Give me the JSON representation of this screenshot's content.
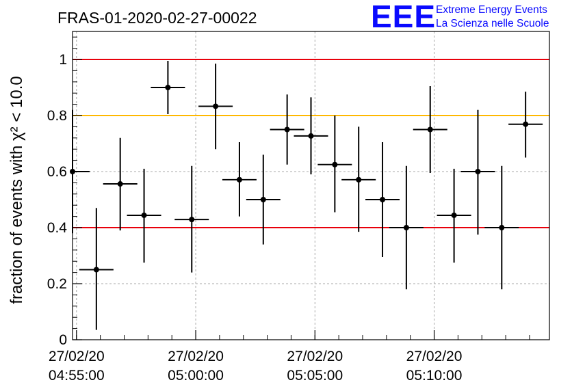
{
  "header": {
    "title": "FRAS-01-2020-02-27-00022",
    "logo_text": "EEE",
    "logo_line1": "Extreme Energy Events",
    "logo_line2": "La Scienza nelle Scuole"
  },
  "chart_data": {
    "type": "scatter",
    "title": "FRAS-01-2020-02-27-00022",
    "ylabel": "fraction of events with χ² < 10.0",
    "ylim": [
      0,
      1.1
    ],
    "yticks": [
      0,
      0.2,
      0.4,
      0.6,
      0.8,
      1
    ],
    "ytick_labels": [
      "0",
      "0.2",
      "0.4",
      "0.6",
      "0.8",
      "1"
    ],
    "xlim": [
      "04:54:50",
      "05:14:50"
    ],
    "xticks": [
      {
        "t": "04:55:00",
        "date": "27/02/20",
        "time": "04:55:00"
      },
      {
        "t": "05:00:00",
        "date": "27/02/20",
        "time": "05:00:00"
      },
      {
        "t": "05:05:00",
        "date": "27/02/20",
        "time": "05:05:00"
      },
      {
        "t": "05:10:00",
        "date": "27/02/20",
        "time": "05:10:00"
      }
    ],
    "grid": true,
    "reference_lines": [
      {
        "y": 1.0,
        "color": "#e8000b"
      },
      {
        "y": 0.8,
        "color": "#ffb800"
      },
      {
        "y": 0.4,
        "color": "#e8000b"
      }
    ],
    "series": [
      {
        "color": "#000000",
        "points": [
          {
            "x": "04:54:50",
            "y": 0.6,
            "ylow": 0.38,
            "yhigh": 0.82
          },
          {
            "x": "04:55:50",
            "y": 0.25,
            "ylow": 0.035,
            "yhigh": 0.47
          },
          {
            "x": "04:56:50",
            "y": 0.556,
            "ylow": 0.39,
            "yhigh": 0.72
          },
          {
            "x": "04:57:50",
            "y": 0.444,
            "ylow": 0.275,
            "yhigh": 0.61
          },
          {
            "x": "04:58:50",
            "y": 0.9,
            "ylow": 0.805,
            "yhigh": 0.995
          },
          {
            "x": "04:59:50",
            "y": 0.429,
            "ylow": 0.24,
            "yhigh": 0.62
          },
          {
            "x": "05:00:50",
            "y": 0.833,
            "ylow": 0.68,
            "yhigh": 0.985
          },
          {
            "x": "05:01:50",
            "y": 0.571,
            "ylow": 0.44,
            "yhigh": 0.705
          },
          {
            "x": "05:02:50",
            "y": 0.5,
            "ylow": 0.34,
            "yhigh": 0.66
          },
          {
            "x": "05:03:50",
            "y": 0.75,
            "ylow": 0.625,
            "yhigh": 0.875
          },
          {
            "x": "05:04:50",
            "y": 0.727,
            "ylow": 0.59,
            "yhigh": 0.865
          },
          {
            "x": "05:05:50",
            "y": 0.625,
            "ylow": 0.455,
            "yhigh": 0.8
          },
          {
            "x": "05:06:50",
            "y": 0.571,
            "ylow": 0.385,
            "yhigh": 0.76
          },
          {
            "x": "05:07:50",
            "y": 0.5,
            "ylow": 0.295,
            "yhigh": 0.705
          },
          {
            "x": "05:08:50",
            "y": 0.4,
            "ylow": 0.18,
            "yhigh": 0.62
          },
          {
            "x": "05:09:50",
            "y": 0.75,
            "ylow": 0.595,
            "yhigh": 0.905
          },
          {
            "x": "05:10:50",
            "y": 0.444,
            "ylow": 0.275,
            "yhigh": 0.61
          },
          {
            "x": "05:11:50",
            "y": 0.6,
            "ylow": 0.375,
            "yhigh": 0.82
          },
          {
            "x": "05:12:50",
            "y": 0.4,
            "ylow": 0.18,
            "yhigh": 0.62
          },
          {
            "x": "05:13:50",
            "y": 0.769,
            "ylow": 0.65,
            "yhigh": 0.885
          }
        ]
      }
    ]
  }
}
